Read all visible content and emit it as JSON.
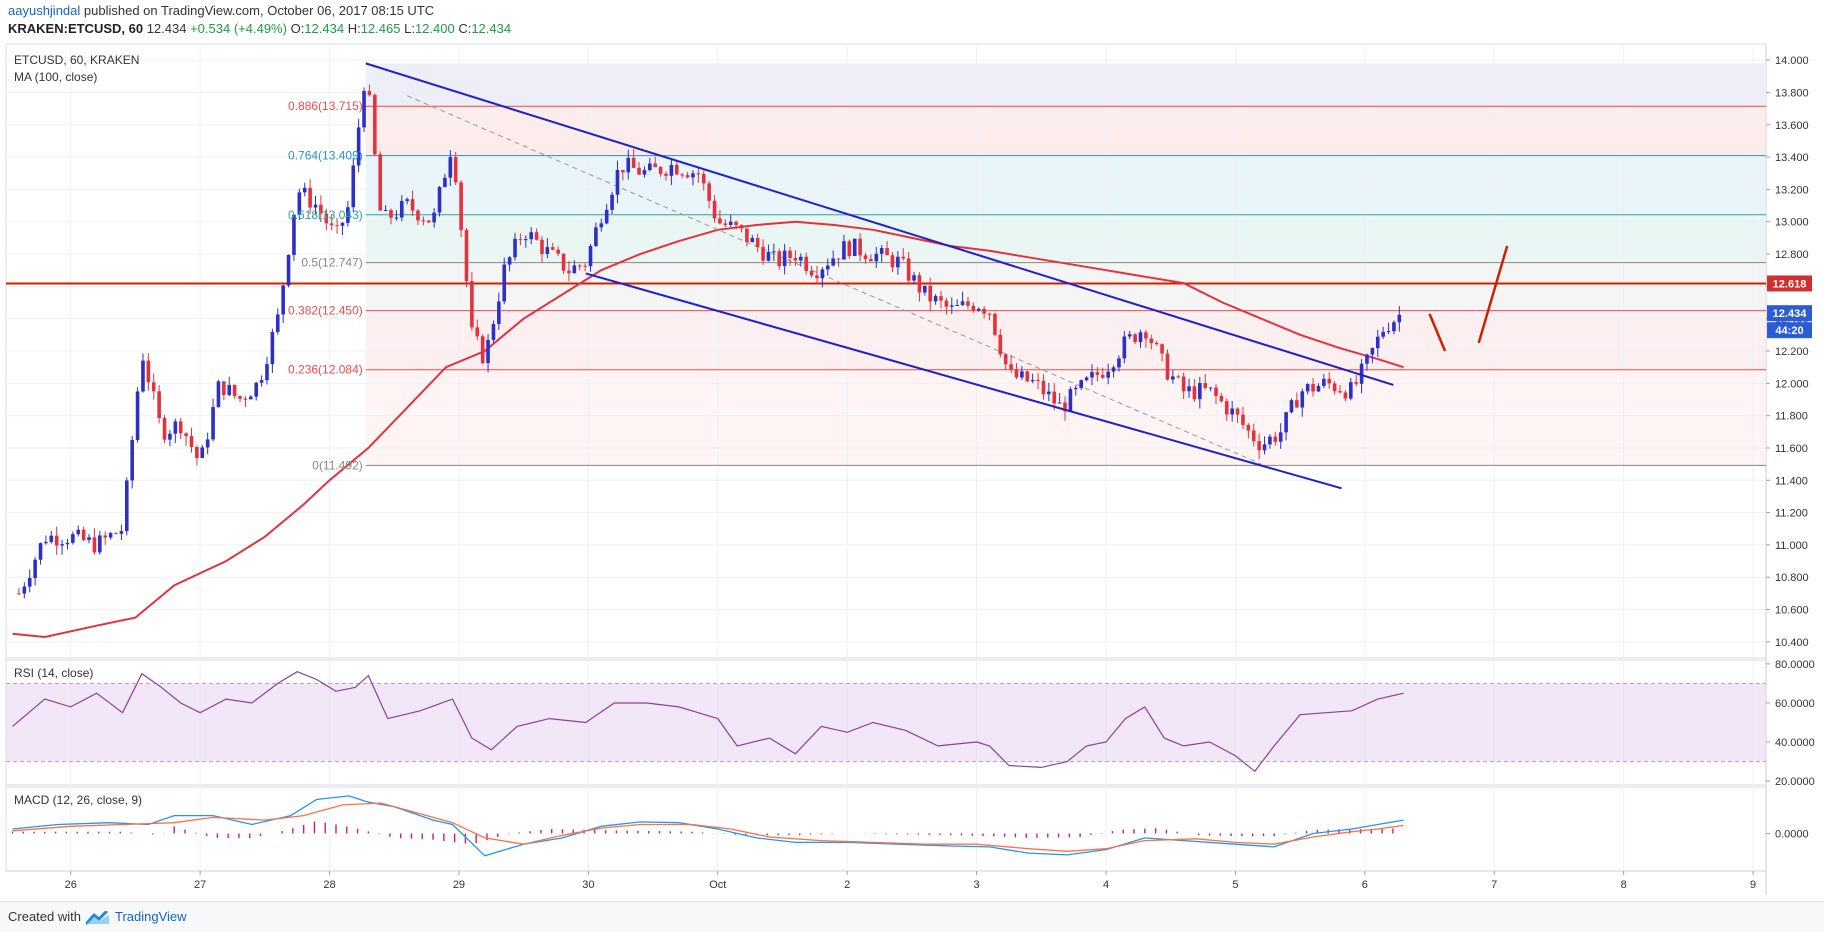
{
  "header": {
    "author": "aayushjindal",
    "published_text": " published on TradingView.com, October 06, 2017 08:15 UTC",
    "ohlc_symbol": "KRAKEN:ETCUSD, 60",
    "ohlc_last": "12.434",
    "ohlc_change": "+0.534 (+4.49%)",
    "o_label": "O:",
    "o_value": "12.434",
    "h_label": "H:",
    "h_value": "12.465",
    "l_label": "L:",
    "l_value": "12.400",
    "c_label": "C:",
    "c_value": "12.434"
  },
  "footer": {
    "created_with": "Created with",
    "brand": "TradingView"
  },
  "colors": {
    "up": "#2c2fc8",
    "down": "#e3323d",
    "ma": "#e3323d",
    "trend": "#1f1fcc",
    "rsi": "#8e3f9c",
    "macd": "#2196f3",
    "signal": "#ff7043",
    "hist": "#d81b60",
    "resistance": "#cc2200",
    "fib_red": "#e94c4c",
    "fib_blue": "#2a8fd4",
    "fib_green": "#26a69a",
    "fib_gray": "#888888"
  },
  "chart_data": [
    {
      "type": "candlestick",
      "title": "ETCUSD, 60, KRAKEN",
      "indicator": "MA (100, close)",
      "y_ticks": [
        "14.000",
        "13.800",
        "13.600",
        "13.400",
        "13.200",
        "13.000",
        "12.800",
        "12.600",
        "12.400",
        "12.200",
        "12.000",
        "11.800",
        "11.600",
        "11.400",
        "11.200",
        "11.000",
        "10.800",
        "10.600",
        "10.400"
      ],
      "ylim": [
        10.3,
        14.1
      ],
      "x_ticks": [
        "26",
        "27",
        "28",
        "29",
        "30",
        "Oct",
        "2",
        "3",
        "4",
        "5",
        "6",
        "7",
        "8",
        "9"
      ],
      "price_label": "12.434",
      "countdown_label": "44:20",
      "resistance_label": "12.618",
      "resistance_value": 12.618,
      "fib_levels": [
        {
          "label": "0.886(13.715)",
          "value": 13.715,
          "color": "red"
        },
        {
          "label": "0.764(13.409)",
          "value": 13.409,
          "color": "blue"
        },
        {
          "label": "0.618(13.043)",
          "value": 13.043,
          "color": "green"
        },
        {
          "label": "0.5(12.747)",
          "value": 12.747,
          "color": "gray"
        },
        {
          "label": "0.382(12.450)",
          "value": 12.45,
          "color": "red"
        },
        {
          "label": "0.236(12.084)",
          "value": 12.084,
          "color": "red"
        },
        {
          "label": "0(11.492)",
          "value": 11.492,
          "color": "gray"
        }
      ],
      "ohlc_path": [
        [
          25.6,
          10.7
        ],
        [
          25.8,
          11.05
        ],
        [
          26.0,
          11.05
        ],
        [
          26.2,
          11.0
        ],
        [
          26.4,
          11.1
        ],
        [
          26.55,
          12.2
        ],
        [
          26.7,
          11.7
        ],
        [
          26.85,
          11.75
        ],
        [
          27.0,
          11.5
        ],
        [
          27.15,
          12.0
        ],
        [
          27.3,
          11.9
        ],
        [
          27.45,
          12.0
        ],
        [
          27.6,
          12.4
        ],
        [
          27.75,
          13.2
        ],
        [
          27.9,
          13.1
        ],
        [
          28.05,
          12.9
        ],
        [
          28.15,
          13.1
        ],
        [
          28.28,
          13.95
        ],
        [
          28.4,
          13.0
        ],
        [
          28.6,
          13.1
        ],
        [
          28.8,
          13.0
        ],
        [
          28.95,
          13.5
        ],
        [
          29.1,
          12.3
        ],
        [
          29.2,
          12.15
        ],
        [
          29.35,
          12.7
        ],
        [
          29.5,
          12.95
        ],
        [
          29.7,
          12.8
        ],
        [
          29.85,
          12.7
        ],
        [
          29.98,
          12.75
        ],
        [
          30.1,
          13.05
        ],
        [
          30.25,
          13.35
        ],
        [
          30.45,
          13.3
        ],
        [
          30.65,
          13.35
        ],
        [
          30.85,
          13.3
        ],
        [
          31.0,
          13.0
        ],
        [
          31.15,
          12.95
        ],
        [
          31.3,
          12.85
        ],
        [
          31.45,
          12.75
        ],
        [
          31.6,
          12.8
        ],
        [
          31.75,
          12.7
        ],
        [
          32.0,
          12.85
        ],
        [
          32.2,
          12.8
        ],
        [
          32.4,
          12.75
        ],
        [
          32.6,
          12.55
        ],
        [
          32.8,
          12.45
        ],
        [
          33.0,
          12.5
        ],
        [
          33.1,
          12.45
        ],
        [
          33.25,
          12.05
        ],
        [
          33.45,
          12.0
        ],
        [
          33.65,
          11.85
        ],
        [
          33.85,
          12.0
        ],
        [
          34.0,
          12.1
        ],
        [
          34.15,
          12.25
        ],
        [
          34.3,
          12.35
        ],
        [
          34.45,
          12.1
        ],
        [
          34.6,
          11.95
        ],
        [
          34.8,
          11.95
        ],
        [
          35.0,
          11.8
        ],
        [
          35.1,
          11.7
        ],
        [
          35.2,
          11.62
        ],
        [
          35.35,
          11.7
        ],
        [
          35.5,
          11.95
        ],
        [
          35.7,
          12.0
        ],
        [
          35.9,
          11.95
        ],
        [
          36.0,
          12.1
        ],
        [
          36.15,
          12.35
        ],
        [
          36.28,
          12.43
        ]
      ],
      "ma_path": [
        [
          25.55,
          10.45
        ],
        [
          25.8,
          10.43
        ],
        [
          26.2,
          10.5
        ],
        [
          26.5,
          10.55
        ],
        [
          26.8,
          10.75
        ],
        [
          27.2,
          10.9
        ],
        [
          27.5,
          11.05
        ],
        [
          27.8,
          11.25
        ],
        [
          28.0,
          11.4
        ],
        [
          28.3,
          11.6
        ],
        [
          28.6,
          11.85
        ],
        [
          28.9,
          12.1
        ],
        [
          29.2,
          12.2
        ],
        [
          29.5,
          12.4
        ],
        [
          29.8,
          12.55
        ],
        [
          30.1,
          12.7
        ],
        [
          30.4,
          12.8
        ],
        [
          30.7,
          12.88
        ],
        [
          31.0,
          12.95
        ],
        [
          31.3,
          12.98
        ],
        [
          31.6,
          13.0
        ],
        [
          31.9,
          12.98
        ],
        [
          32.2,
          12.95
        ],
        [
          32.5,
          12.9
        ],
        [
          32.8,
          12.85
        ],
        [
          33.1,
          12.82
        ],
        [
          33.4,
          12.78
        ],
        [
          33.7,
          12.74
        ],
        [
          34.0,
          12.7
        ],
        [
          34.3,
          12.66
        ],
        [
          34.6,
          12.62
        ],
        [
          34.9,
          12.5
        ],
        [
          35.2,
          12.4
        ],
        [
          35.5,
          12.3
        ],
        [
          35.8,
          12.22
        ],
        [
          36.1,
          12.15
        ],
        [
          36.3,
          12.1
        ]
      ],
      "trend_upper": [
        [
          28.28,
          13.98
        ],
        [
          36.22,
          11.99
        ]
      ],
      "trend_lower": [
        [
          29.98,
          12.68
        ],
        [
          35.82,
          11.35
        ]
      ],
      "dashed_line": [
        [
          28.6,
          13.78
        ],
        [
          35.2,
          11.5
        ]
      ],
      "projection_down": [
        [
          36.5,
          12.43
        ],
        [
          36.62,
          12.2
        ]
      ],
      "projection_up": [
        [
          36.88,
          12.25
        ],
        [
          37.1,
          12.85
        ]
      ]
    },
    {
      "type": "line",
      "title": "RSI (14, close)",
      "y_ticks": [
        "80.0000",
        "60.0000",
        "40.0000",
        "20.0000"
      ],
      "ylim": [
        18,
        82
      ],
      "bands": [
        30,
        70
      ],
      "values_path": [
        [
          25.55,
          48
        ],
        [
          25.8,
          62
        ],
        [
          26.0,
          58
        ],
        [
          26.2,
          65
        ],
        [
          26.4,
          55
        ],
        [
          26.55,
          75
        ],
        [
          26.7,
          68
        ],
        [
          26.85,
          60
        ],
        [
          27.0,
          55
        ],
        [
          27.2,
          62
        ],
        [
          27.4,
          60
        ],
        [
          27.6,
          70
        ],
        [
          27.75,
          76
        ],
        [
          27.9,
          72
        ],
        [
          28.05,
          66
        ],
        [
          28.2,
          68
        ],
        [
          28.3,
          74
        ],
        [
          28.45,
          52
        ],
        [
          28.7,
          56
        ],
        [
          28.95,
          62
        ],
        [
          29.1,
          42
        ],
        [
          29.25,
          36
        ],
        [
          29.45,
          48
        ],
        [
          29.7,
          52
        ],
        [
          29.98,
          50
        ],
        [
          30.2,
          60
        ],
        [
          30.45,
          60
        ],
        [
          30.7,
          58
        ],
        [
          31.0,
          52
        ],
        [
          31.15,
          38
        ],
        [
          31.4,
          42
        ],
        [
          31.6,
          34
        ],
        [
          31.8,
          48
        ],
        [
          32.0,
          45
        ],
        [
          32.2,
          50
        ],
        [
          32.45,
          46
        ],
        [
          32.7,
          38
        ],
        [
          33.0,
          40
        ],
        [
          33.1,
          38
        ],
        [
          33.25,
          28
        ],
        [
          33.5,
          27
        ],
        [
          33.7,
          30
        ],
        [
          33.85,
          38
        ],
        [
          34.0,
          40
        ],
        [
          34.15,
          52
        ],
        [
          34.3,
          58
        ],
        [
          34.45,
          42
        ],
        [
          34.6,
          38
        ],
        [
          34.8,
          40
        ],
        [
          35.0,
          33
        ],
        [
          35.15,
          25
        ],
        [
          35.3,
          38
        ],
        [
          35.5,
          54
        ],
        [
          35.7,
          55
        ],
        [
          35.9,
          56
        ],
        [
          36.1,
          62
        ],
        [
          36.3,
          65
        ]
      ]
    },
    {
      "type": "line",
      "title": "MACD (12, 26, close, 9)",
      "y_ticks": [
        "0.0000"
      ],
      "ylim": [
        -0.42,
        0.52
      ],
      "macd_path": [
        [
          25.55,
          0.05
        ],
        [
          25.9,
          0.1
        ],
        [
          26.3,
          0.12
        ],
        [
          26.6,
          0.1
        ],
        [
          26.8,
          0.2
        ],
        [
          27.1,
          0.2
        ],
        [
          27.4,
          0.1
        ],
        [
          27.7,
          0.2
        ],
        [
          27.9,
          0.38
        ],
        [
          28.15,
          0.42
        ],
        [
          28.3,
          0.35
        ],
        [
          28.5,
          0.3
        ],
        [
          28.8,
          0.15
        ],
        [
          28.95,
          0.1
        ],
        [
          29.2,
          -0.25
        ],
        [
          29.5,
          -0.12
        ],
        [
          29.8,
          -0.05
        ],
        [
          30.1,
          0.08
        ],
        [
          30.4,
          0.13
        ],
        [
          30.7,
          0.12
        ],
        [
          31.0,
          0.05
        ],
        [
          31.3,
          -0.05
        ],
        [
          31.6,
          -0.1
        ],
        [
          32.0,
          -0.1
        ],
        [
          32.4,
          -0.12
        ],
        [
          32.8,
          -0.14
        ],
        [
          33.1,
          -0.15
        ],
        [
          33.4,
          -0.22
        ],
        [
          33.7,
          -0.24
        ],
        [
          34.0,
          -0.18
        ],
        [
          34.3,
          -0.05
        ],
        [
          34.6,
          -0.08
        ],
        [
          35.0,
          -0.12
        ],
        [
          35.3,
          -0.15
        ],
        [
          35.6,
          0.0
        ],
        [
          35.9,
          0.05
        ],
        [
          36.1,
          0.1
        ],
        [
          36.3,
          0.15
        ]
      ],
      "signal_path": [
        [
          25.55,
          0.03
        ],
        [
          26.0,
          0.08
        ],
        [
          26.4,
          0.1
        ],
        [
          26.8,
          0.12
        ],
        [
          27.1,
          0.18
        ],
        [
          27.5,
          0.15
        ],
        [
          27.8,
          0.2
        ],
        [
          28.1,
          0.32
        ],
        [
          28.4,
          0.34
        ],
        [
          28.7,
          0.22
        ],
        [
          28.95,
          0.12
        ],
        [
          29.2,
          -0.05
        ],
        [
          29.5,
          -0.12
        ],
        [
          29.8,
          -0.02
        ],
        [
          30.1,
          0.06
        ],
        [
          30.4,
          0.1
        ],
        [
          30.8,
          0.1
        ],
        [
          31.1,
          0.05
        ],
        [
          31.4,
          -0.04
        ],
        [
          31.8,
          -0.08
        ],
        [
          32.2,
          -0.1
        ],
        [
          32.6,
          -0.12
        ],
        [
          33.0,
          -0.12
        ],
        [
          33.4,
          -0.17
        ],
        [
          33.7,
          -0.2
        ],
        [
          34.0,
          -0.17
        ],
        [
          34.3,
          -0.08
        ],
        [
          34.7,
          -0.06
        ],
        [
          35.0,
          -0.1
        ],
        [
          35.3,
          -0.12
        ],
        [
          35.6,
          -0.04
        ],
        [
          35.9,
          0.02
        ],
        [
          36.1,
          0.05
        ],
        [
          36.3,
          0.09
        ]
      ],
      "hist_path": [
        [
          25.55,
          0.02
        ],
        [
          26.0,
          0.02
        ],
        [
          26.4,
          0.02
        ],
        [
          26.7,
          -0.02
        ],
        [
          26.8,
          0.08
        ],
        [
          27.1,
          -0.05
        ],
        [
          27.4,
          -0.05
        ],
        [
          27.7,
          0.05
        ],
        [
          27.9,
          0.14
        ],
        [
          28.2,
          0.06
        ],
        [
          28.5,
          -0.05
        ],
        [
          28.8,
          -0.07
        ],
        [
          29.1,
          -0.12
        ],
        [
          29.4,
          0.0
        ],
        [
          29.7,
          0.05
        ],
        [
          30.0,
          0.04
        ],
        [
          30.4,
          0.03
        ],
        [
          30.8,
          0.02
        ],
        [
          31.2,
          -0.02
        ],
        [
          31.6,
          -0.02
        ],
        [
          32.0,
          0.0
        ],
        [
          32.4,
          -0.01
        ],
        [
          32.8,
          -0.02
        ],
        [
          33.1,
          -0.03
        ],
        [
          33.4,
          -0.05
        ],
        [
          33.8,
          -0.04
        ],
        [
          34.1,
          0.04
        ],
        [
          34.4,
          0.06
        ],
        [
          34.7,
          -0.02
        ],
        [
          35.0,
          -0.03
        ],
        [
          35.3,
          -0.03
        ],
        [
          35.6,
          0.04
        ],
        [
          35.9,
          0.05
        ],
        [
          36.1,
          0.05
        ],
        [
          36.3,
          0.06
        ]
      ]
    }
  ]
}
